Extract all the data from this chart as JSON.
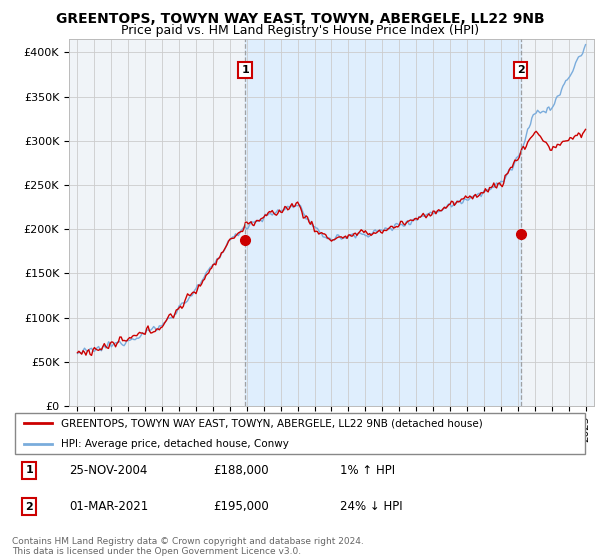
{
  "title": "GREENTOPS, TOWYN WAY EAST, TOWYN, ABERGELE, LL22 9NB",
  "subtitle": "Price paid vs. HM Land Registry's House Price Index (HPI)",
  "title_fontsize": 10,
  "subtitle_fontsize": 9,
  "ylabel_ticks": [
    "£0",
    "£50K",
    "£100K",
    "£150K",
    "£200K",
    "£250K",
    "£300K",
    "£350K",
    "£400K"
  ],
  "ytick_values": [
    0,
    50000,
    100000,
    150000,
    200000,
    250000,
    300000,
    350000,
    400000
  ],
  "ylim": [
    0,
    415000
  ],
  "hpi_color": "#7aacdc",
  "price_color": "#cc0000",
  "shade_color": "#ddeeff",
  "vline_color": "#aaaaaa",
  "background_color": "#ffffff",
  "plot_bg_color": "#f0f4f8",
  "grid_color": "#cccccc",
  "legend_label_1": "GREENTOPS, TOWYN WAY EAST, TOWYN, ABERGELE, LL22 9NB (detached house)",
  "legend_label_2": "HPI: Average price, detached house, Conwy",
  "annotation_1_label": "1",
  "annotation_1_date": "25-NOV-2004",
  "annotation_1_price": "£188,000",
  "annotation_1_pct": "1% ↑ HPI",
  "annotation_2_label": "2",
  "annotation_2_date": "01-MAR-2021",
  "annotation_2_price": "£195,000",
  "annotation_2_pct": "24% ↓ HPI",
  "footer_1": "Contains HM Land Registry data © Crown copyright and database right 2024.",
  "footer_2": "This data is licensed under the Open Government Licence v3.0.",
  "sale_1_x": 2004.9,
  "sale_1_y": 188000,
  "sale_2_x": 2021.17,
  "sale_2_y": 195000,
  "xlim_start": 1994.5,
  "xlim_end": 2025.5
}
